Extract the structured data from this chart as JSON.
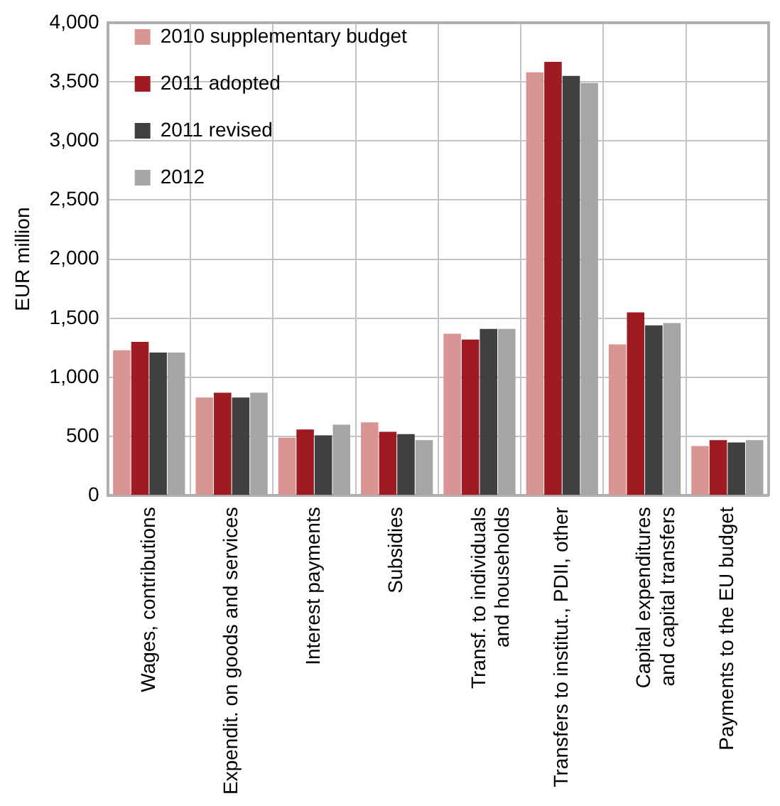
{
  "chart_data": {
    "type": "bar",
    "ylabel": "EUR million",
    "categories": [
      "Wages, contributions",
      "Expendit. on goods and services",
      "Interest payments",
      "Subsidies",
      "Transf. to individuals\nand households",
      "Transfers to institut., PDII, other",
      "Capital expenditures\nand capital transfers",
      "Payments to the EU budget"
    ],
    "series": [
      {
        "name": "2010 supplementary budget",
        "color": "#d99494",
        "values": [
          1230,
          830,
          490,
          620,
          1370,
          3580,
          1280,
          420
        ]
      },
      {
        "name": "2011 adopted",
        "color": "#9e1b22",
        "values": [
          1300,
          870,
          560,
          540,
          1320,
          3670,
          1550,
          470
        ]
      },
      {
        "name": "2011 revised",
        "color": "#404040",
        "values": [
          1210,
          830,
          510,
          520,
          1410,
          3550,
          1440,
          450
        ]
      },
      {
        "name": "2012",
        "color": "#a6a6a6",
        "values": [
          1210,
          870,
          600,
          470,
          1410,
          3490,
          1460,
          470
        ]
      }
    ],
    "ylim": [
      0,
      4000
    ],
    "yticks": [
      0,
      500,
      {
        "value": 1000,
        "label": "1,000"
      },
      {
        "value": 1500,
        "label": "1,500"
      },
      {
        "value": 2000,
        "label": "2,000"
      },
      {
        "value": 2500,
        "label": "2,500"
      },
      {
        "value": 3000,
        "label": "3,000"
      },
      {
        "value": 3500,
        "label": "3,500"
      },
      {
        "value": 4000,
        "label": "4,000"
      }
    ],
    "grid": true,
    "legend": "top left"
  }
}
